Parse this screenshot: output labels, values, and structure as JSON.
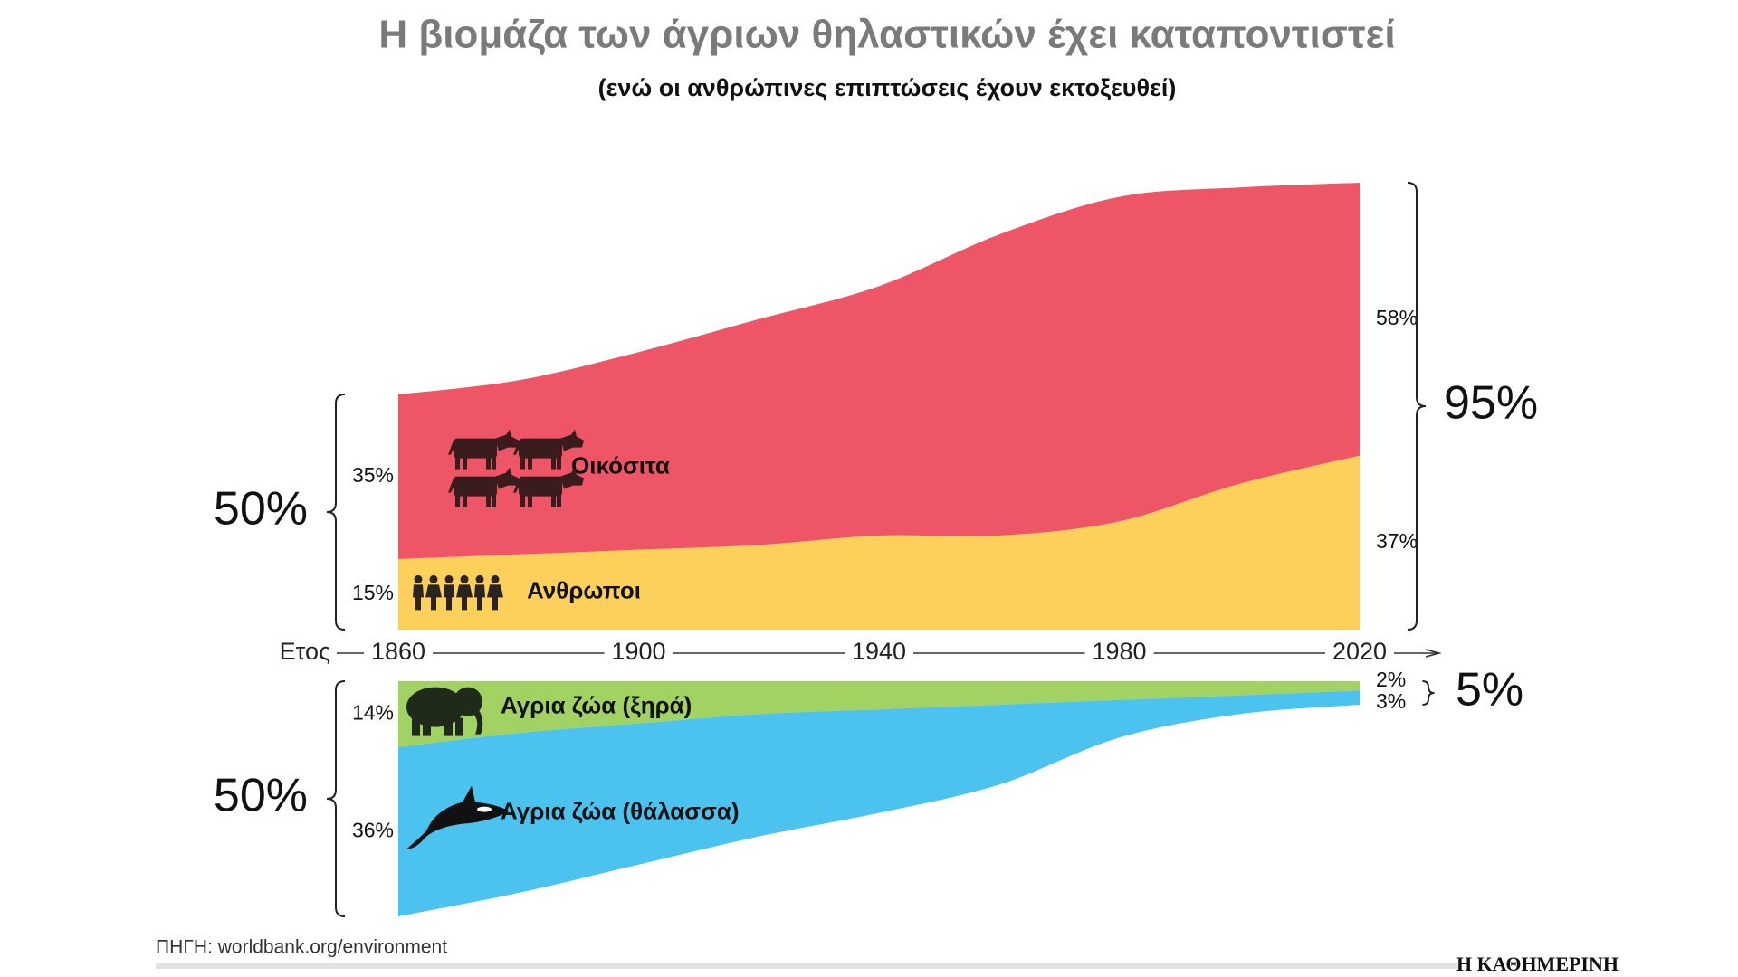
{
  "source": "ΠΗΓΗ: worldbank.org/environment",
  "brand": "Η ΚΑΘΗΜΕΡΙΝΗ",
  "chart_data": [
    {
      "type": "area",
      "title": "Η βιομάζα των άγριων θηλαστικών έχει καταποντιστεί",
      "subtitle": "(ενώ οι ανθρώπινες επιπτώσεις έχουν εκτοξευθεί)",
      "x_label": "Ετος",
      "x": [
        1860,
        1880,
        1900,
        1920,
        1940,
        1960,
        1980,
        2000,
        2020
      ],
      "xlim": [
        1860,
        2020
      ],
      "xticks": [
        1860,
        1900,
        1940,
        1980,
        2020
      ],
      "series": [
        {
          "name": "Ανθρωποι",
          "color": "#fcd05a",
          "values": [
            15,
            16,
            17,
            18,
            20,
            20,
            23,
            31,
            37
          ],
          "value_labels": [
            "15%",
            null,
            null,
            null,
            null,
            null,
            null,
            null,
            "37%"
          ]
        },
        {
          "name": "Οικόσιτα",
          "color": "#ee5566",
          "values": [
            35,
            37,
            42,
            48,
            53,
            64,
            69,
            63,
            58
          ],
          "value_labels": [
            "35%",
            null,
            null,
            null,
            null,
            null,
            null,
            null,
            "58%"
          ]
        }
      ],
      "total_labels": [
        {
          "value": 50,
          "label": "50%"
        },
        {
          "value": 95,
          "label": "95%"
        }
      ]
    },
    {
      "type": "area",
      "inverted": true,
      "x": [
        1860,
        1880,
        1900,
        1920,
        1940,
        1960,
        1980,
        2000,
        2020
      ],
      "xlim": [
        1860,
        2020
      ],
      "series": [
        {
          "name": "Αγρια ζώα (ξηρά)",
          "color": "#a3d264",
          "values": [
            14,
            11,
            9,
            7,
            6,
            5,
            4,
            3,
            2
          ],
          "value_labels": [
            "14%",
            null,
            null,
            null,
            null,
            null,
            null,
            null,
            "2%"
          ]
        },
        {
          "name": "Αγρια ζώα (θάλασσα)",
          "color": "#4cc3ee",
          "values": [
            36,
            34,
            30,
            26,
            22,
            17,
            8,
            4,
            3
          ],
          "value_labels": [
            "36%",
            null,
            null,
            null,
            null,
            null,
            null,
            null,
            "3%"
          ]
        }
      ],
      "total_labels": [
        {
          "value": 50,
          "label": "50%"
        },
        {
          "value": 5,
          "label": "5%"
        }
      ]
    }
  ]
}
